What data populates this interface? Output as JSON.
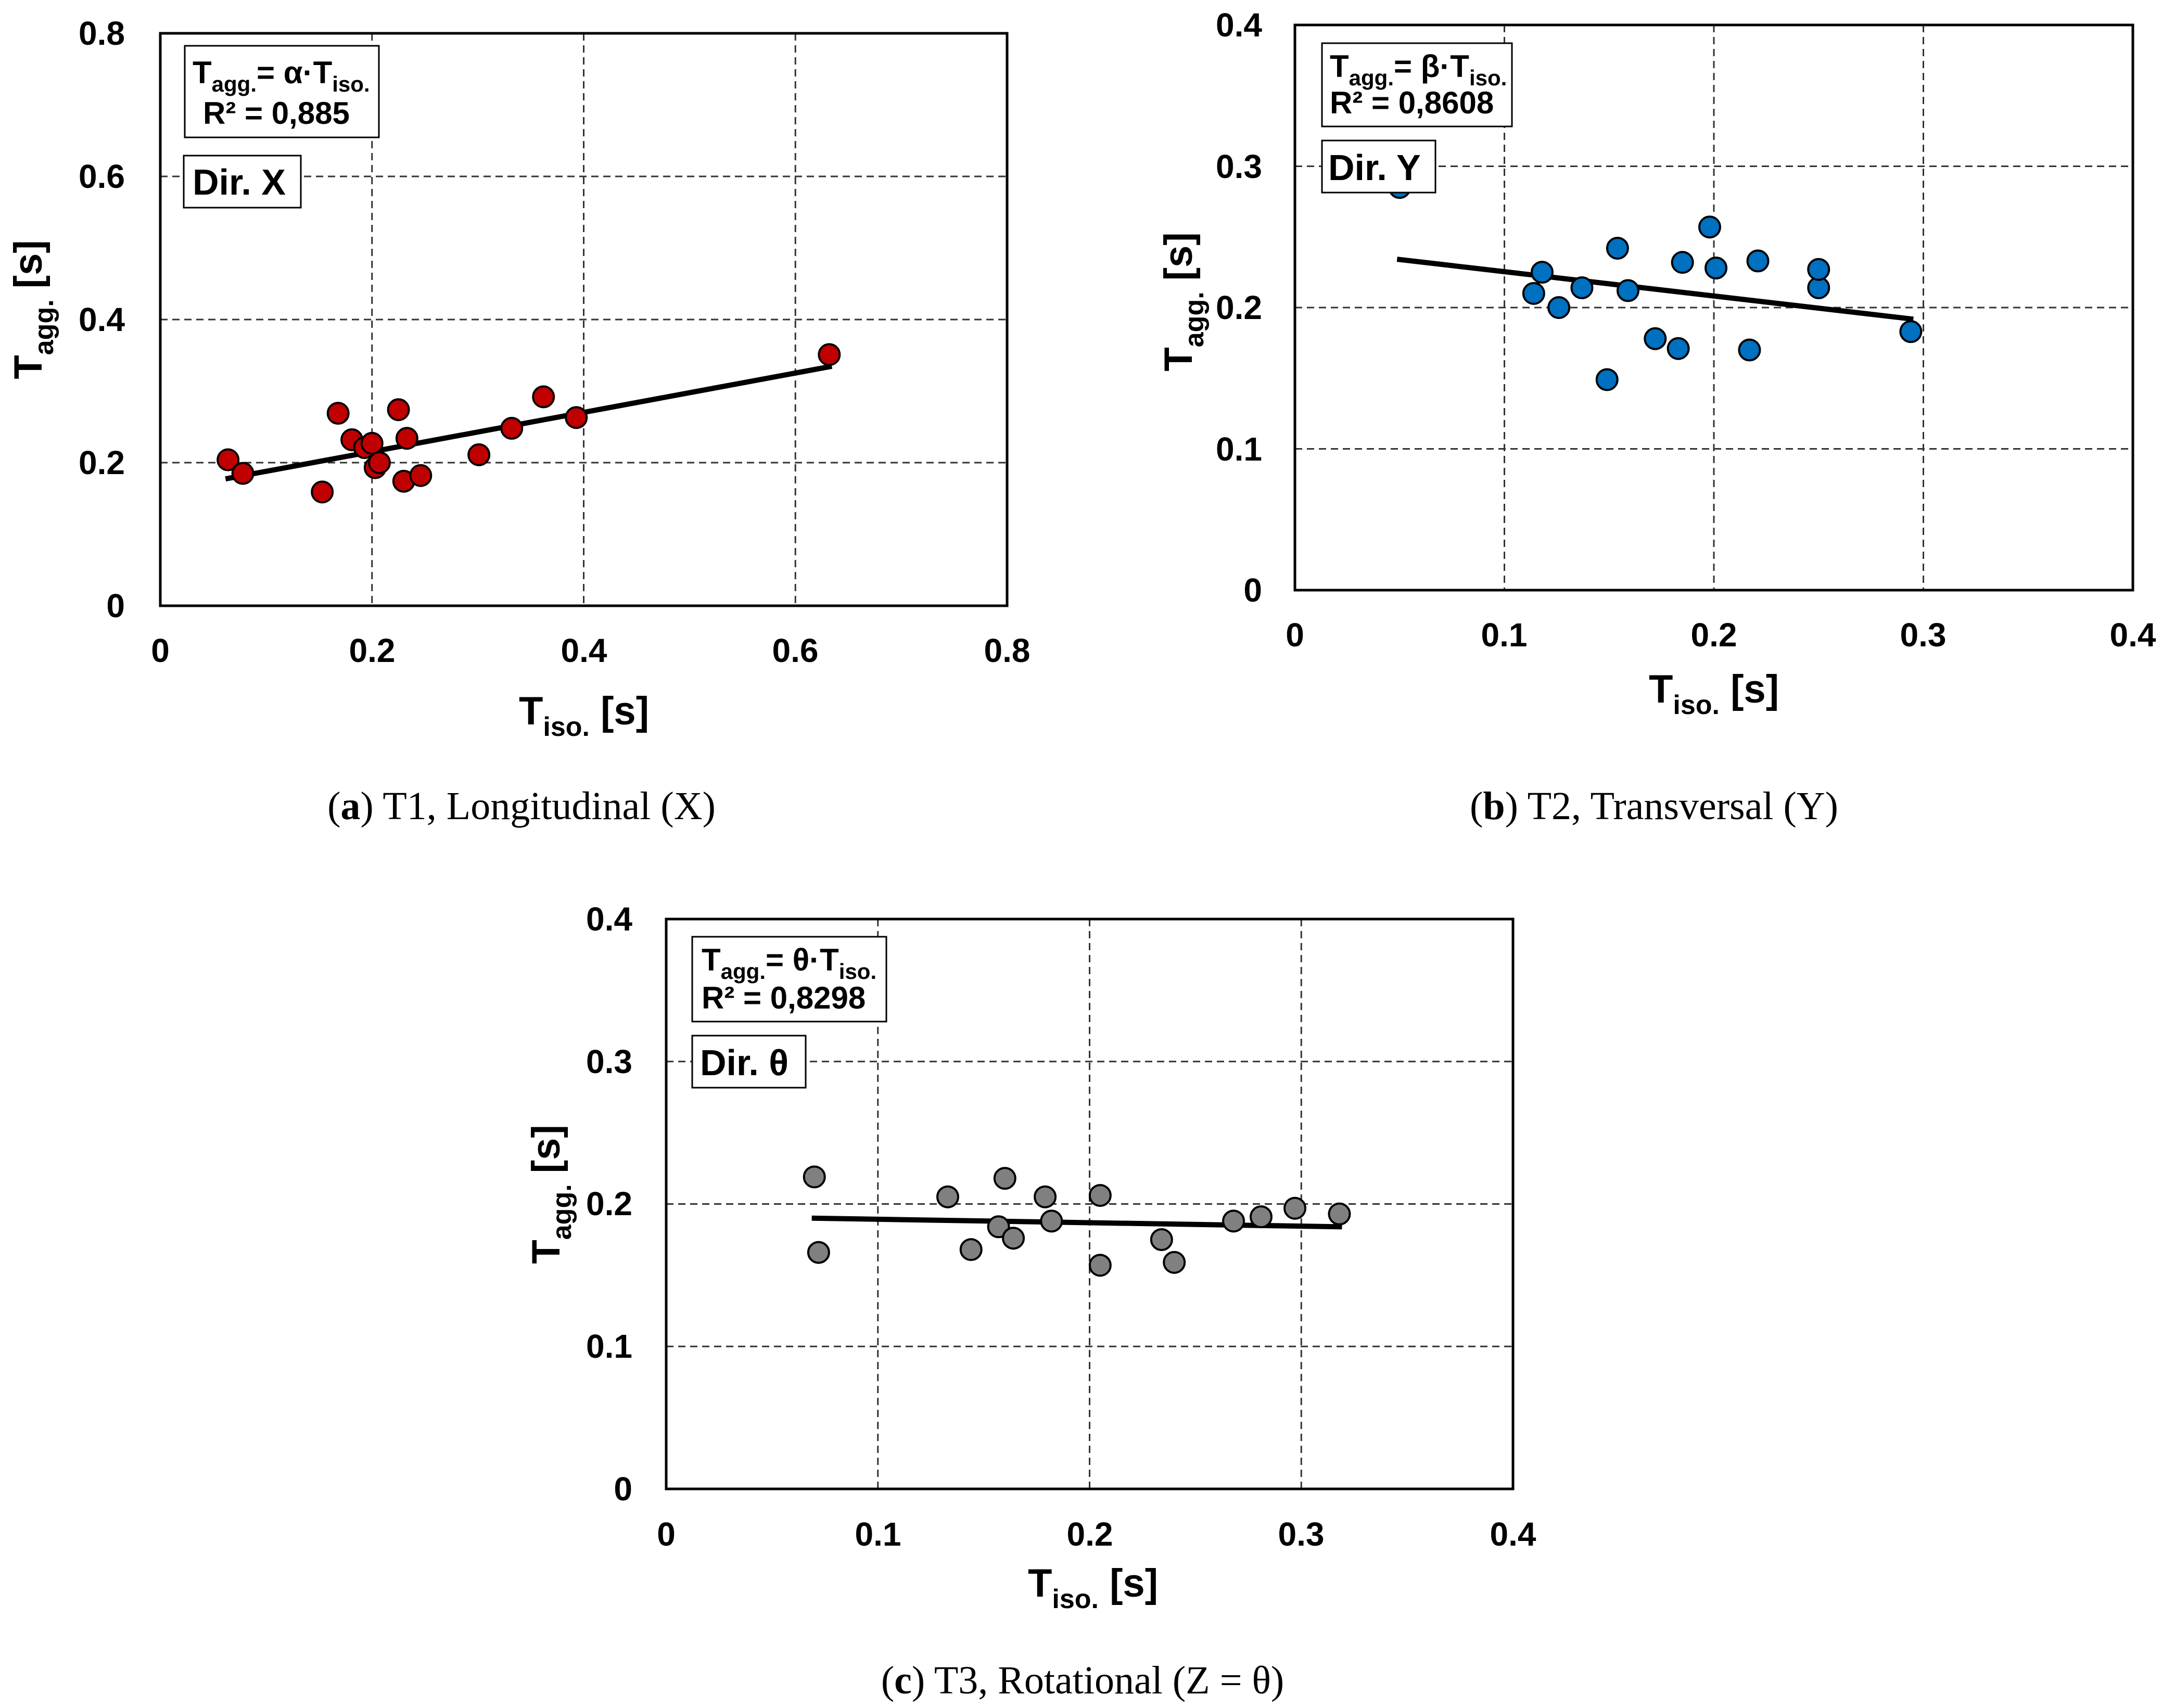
{
  "chart_data": [
    {
      "type": "scatter",
      "panel": "a",
      "title": "",
      "xlabel": "T",
      "xlabel_sub": "iso.",
      "xlabel_unit": " [s]",
      "ylabel": "T",
      "ylabel_sub": "agg.",
      "ylabel_unit": " [s]",
      "xlim": [
        0,
        0.8
      ],
      "ylim": [
        0,
        0.8
      ],
      "xticks": [
        0,
        0.2,
        0.4,
        0.6,
        0.8
      ],
      "yticks": [
        0,
        0.2,
        0.4,
        0.6,
        0.8
      ],
      "xtick_labels": [
        "0",
        "0.2",
        "0.4",
        "0.6",
        "0.8"
      ],
      "ytick_labels": [
        "0",
        "0.2",
        "0.4",
        "0.6",
        "0.8"
      ],
      "grid": true,
      "marker_color": "#c00000",
      "points": [
        [
          0.064,
          0.204
        ],
        [
          0.078,
          0.185
        ],
        [
          0.153,
          0.159
        ],
        [
          0.168,
          0.269
        ],
        [
          0.181,
          0.232
        ],
        [
          0.193,
          0.221
        ],
        [
          0.2,
          0.227
        ],
        [
          0.203,
          0.193
        ],
        [
          0.207,
          0.2
        ],
        [
          0.225,
          0.274
        ],
        [
          0.23,
          0.174
        ],
        [
          0.233,
          0.234
        ],
        [
          0.246,
          0.182
        ],
        [
          0.301,
          0.211
        ],
        [
          0.332,
          0.248
        ],
        [
          0.362,
          0.292
        ],
        [
          0.393,
          0.263
        ],
        [
          0.632,
          0.351
        ]
      ],
      "fit_line": [
        [
          0.064,
          0.178
        ],
        [
          0.632,
          0.334
        ]
      ],
      "equation_lead": "T",
      "equation_sub1": "agg.",
      "equation_mid": "= α·T",
      "equation_sub2": "iso.",
      "r2_text": "R² = 0,885",
      "direction_label": "Dir. X",
      "caption_label": "a",
      "caption_text": "T1, Longitudinal (X)"
    },
    {
      "type": "scatter",
      "panel": "b",
      "title": "",
      "xlabel": "T",
      "xlabel_sub": "iso.",
      "xlabel_unit": " [s]",
      "ylabel": "T",
      "ylabel_sub": "agg.",
      "ylabel_unit": " [s]",
      "xlim": [
        0,
        0.4
      ],
      "ylim": [
        0,
        0.4
      ],
      "xticks": [
        0,
        0.1,
        0.2,
        0.3,
        0.4
      ],
      "yticks": [
        0,
        0.1,
        0.2,
        0.3,
        0.4
      ],
      "xtick_labels": [
        "0",
        "0.1",
        "0.2",
        "0.3",
        "0.4"
      ],
      "ytick_labels": [
        "0",
        "0.1",
        "0.2",
        "0.3",
        "0.4"
      ],
      "grid": true,
      "marker_color": "#0070c0",
      "points": [
        [
          0.05,
          0.285
        ],
        [
          0.114,
          0.21
        ],
        [
          0.118,
          0.225
        ],
        [
          0.126,
          0.2
        ],
        [
          0.137,
          0.214
        ],
        [
          0.149,
          0.149
        ],
        [
          0.154,
          0.242
        ],
        [
          0.159,
          0.212
        ],
        [
          0.172,
          0.178
        ],
        [
          0.183,
          0.171
        ],
        [
          0.185,
          0.232
        ],
        [
          0.198,
          0.257
        ],
        [
          0.201,
          0.228
        ],
        [
          0.217,
          0.17
        ],
        [
          0.221,
          0.233
        ],
        [
          0.25,
          0.214
        ],
        [
          0.25,
          0.227
        ],
        [
          0.294,
          0.183
        ]
      ],
      "fit_line": [
        [
          0.05,
          0.234
        ],
        [
          0.294,
          0.192
        ]
      ],
      "equation_lead": "T",
      "equation_sub1": "agg.",
      "equation_mid": "= β·T",
      "equation_sub2": "iso.",
      "r2_text": "R² = 0,8608",
      "direction_label": "Dir. Y",
      "caption_label": "b",
      "caption_text": "T2, Transversal (Y)"
    },
    {
      "type": "scatter",
      "panel": "c",
      "title": "",
      "xlabel": "T",
      "xlabel_sub": "iso.",
      "xlabel_unit": " [s]",
      "ylabel": "T",
      "ylabel_sub": "agg.",
      "ylabel_unit": " [s]",
      "xlim": [
        0,
        0.4
      ],
      "ylim": [
        0,
        0.4
      ],
      "xticks": [
        0,
        0.1,
        0.2,
        0.3,
        0.4
      ],
      "yticks": [
        0,
        0.1,
        0.2,
        0.3,
        0.4
      ],
      "xtick_labels": [
        "0",
        "0.1",
        "0.2",
        "0.3",
        "0.4"
      ],
      "ytick_labels": [
        "0",
        "0.1",
        "0.2",
        "0.3",
        "0.4"
      ],
      "grid": true,
      "marker_color": "#808080",
      "points": [
        [
          0.07,
          0.219
        ],
        [
          0.072,
          0.166
        ],
        [
          0.133,
          0.205
        ],
        [
          0.144,
          0.168
        ],
        [
          0.157,
          0.184
        ],
        [
          0.16,
          0.218
        ],
        [
          0.164,
          0.176
        ],
        [
          0.179,
          0.205
        ],
        [
          0.182,
          0.188
        ],
        [
          0.205,
          0.206
        ],
        [
          0.205,
          0.157
        ],
        [
          0.234,
          0.175
        ],
        [
          0.24,
          0.159
        ],
        [
          0.268,
          0.188
        ],
        [
          0.281,
          0.191
        ],
        [
          0.297,
          0.197
        ],
        [
          0.318,
          0.193
        ]
      ],
      "fit_line": [
        [
          0.07,
          0.19
        ],
        [
          0.318,
          0.184
        ]
      ],
      "equation_lead": "T",
      "equation_sub1": "agg.",
      "equation_mid": "= θ·T",
      "equation_sub2": "iso.",
      "r2_text": "R² = 0,8298",
      "direction_label": "Dir. θ",
      "caption_label": "c",
      "caption_text": "T3, Rotational (Z = θ)"
    }
  ]
}
